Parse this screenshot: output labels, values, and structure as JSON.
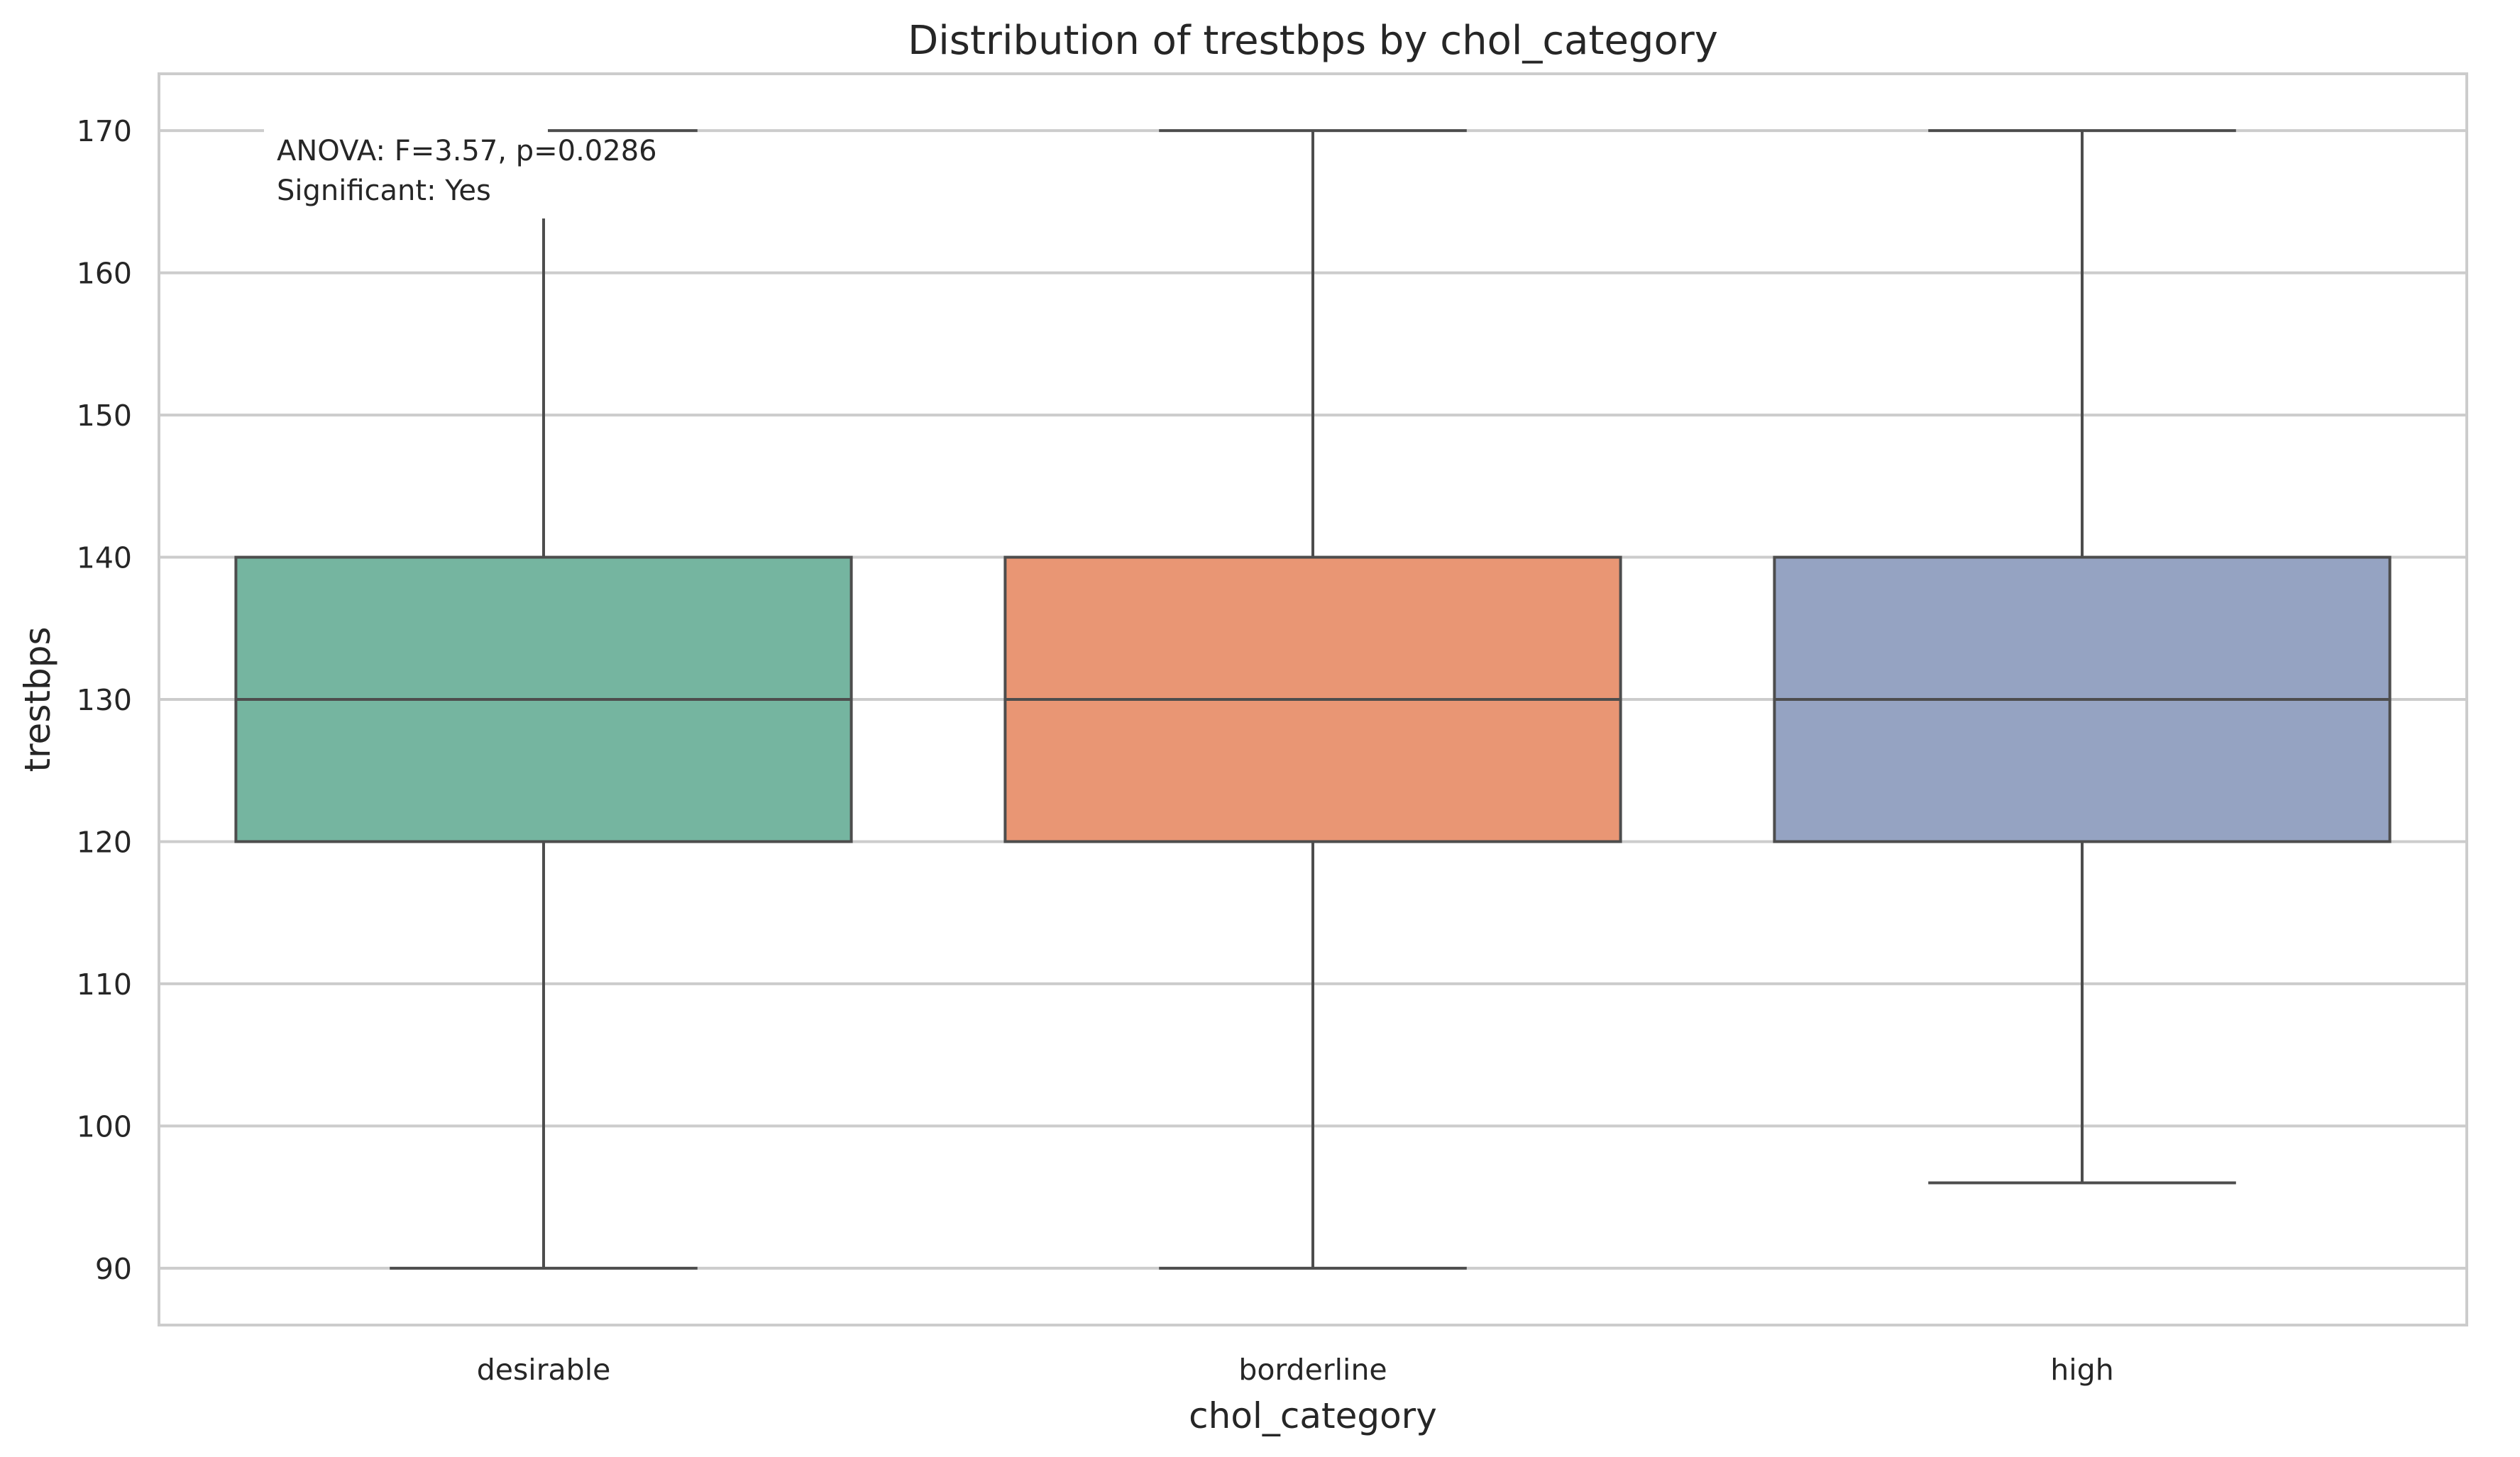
{
  "chart_data": {
    "type": "box",
    "title": "Distribution of trestbps by chol_category",
    "xlabel": "chol_category",
    "ylabel": "trestbps",
    "ylim": [
      86,
      174
    ],
    "yticks": [
      90,
      100,
      110,
      120,
      130,
      140,
      150,
      160,
      170
    ],
    "grid": true,
    "categories": [
      "desirable",
      "borderline",
      "high"
    ],
    "boxes": [
      {
        "category": "desirable",
        "whisker_low": 90,
        "q1": 120,
        "median": 130,
        "q3": 140,
        "whisker_high": 170,
        "color": "#75b5a0"
      },
      {
        "category": "borderline",
        "whisker_low": 90,
        "q1": 120,
        "median": 130,
        "q3": 140,
        "whisker_high": 170,
        "color": "#e99674"
      },
      {
        "category": "high",
        "whisker_low": 96,
        "q1": 120,
        "median": 130,
        "q3": 140,
        "whisker_high": 170,
        "color": "#95a3c2"
      }
    ],
    "annotation": {
      "line1": "ANOVA: F=3.57, p=0.0286",
      "line2": "Significant: Yes",
      "placement": "top-left"
    }
  }
}
